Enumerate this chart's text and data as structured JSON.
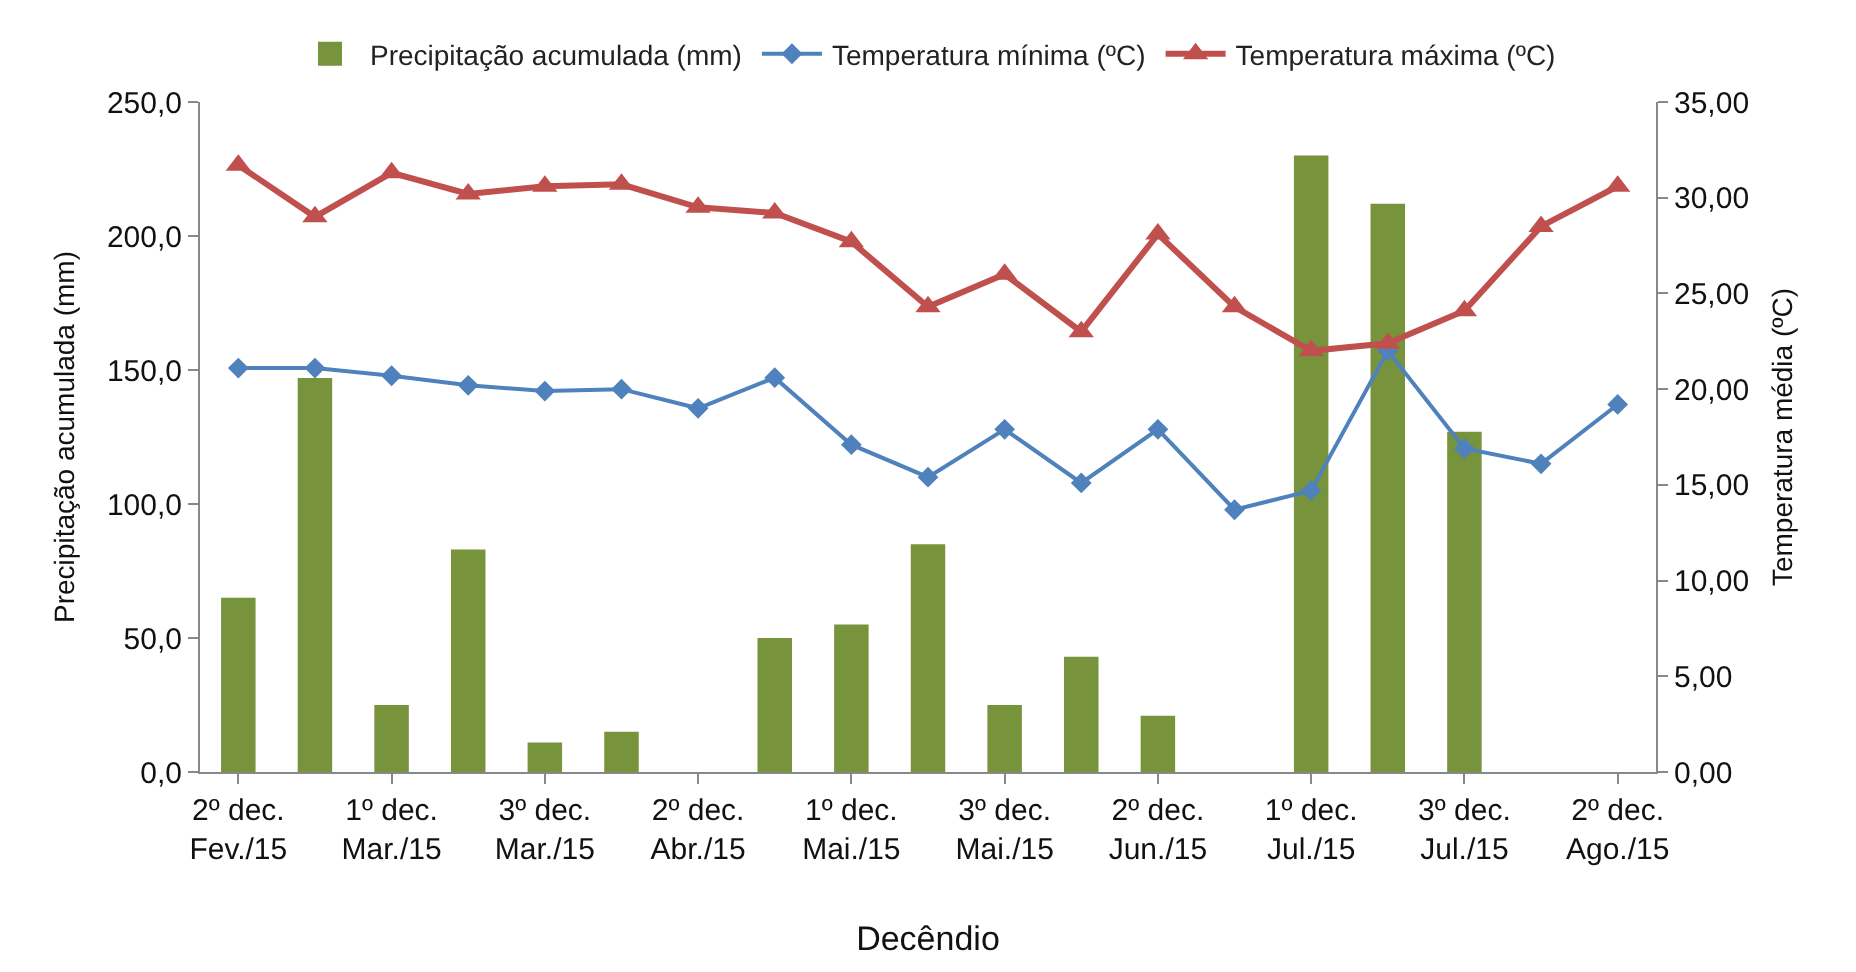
{
  "chart_data": {
    "type": "bar",
    "xlabel": "Decêndio",
    "ylabel": "Precipitação acumulada (mm)",
    "y2label": "Temperatura média (ºC)",
    "categories": [
      "2º dec. Fev./15",
      null,
      "1º dec. Mar./15",
      null,
      "3º dec. Mar./15",
      null,
      "2º dec. Abr./15",
      null,
      "1º dec. Mai./15",
      null,
      "3º dec. Mai./15",
      null,
      "2º dec. Jun./15",
      null,
      "1º dec. Jul./15",
      null,
      "3º dec. Jul./15",
      null,
      "2º dec. Ago./15"
    ],
    "series": [
      {
        "name": "Precipitação acumulada (mm)",
        "color": "#77933c",
        "values": [
          65,
          147,
          25,
          83,
          11,
          15,
          0,
          50,
          55,
          85,
          25,
          43,
          21,
          0,
          230,
          212,
          127,
          0,
          0
        ]
      },
      {
        "name": "Temperatura mínima (ºC)",
        "type": "line",
        "axis": "y2",
        "marker": "diamond",
        "color": "#4f81bd",
        "values": [
          21.1,
          21.1,
          20.7,
          20.2,
          19.9,
          20.0,
          19.0,
          20.6,
          17.1,
          15.4,
          17.9,
          15.1,
          17.9,
          13.7,
          14.7,
          22.0,
          16.9,
          16.1,
          19.2
        ]
      },
      {
        "name": "Temperatura máxima (ºC)",
        "type": "line",
        "axis": "y2",
        "marker": "triangle",
        "color": "#c0504d",
        "values": [
          31.7,
          29.0,
          31.3,
          30.2,
          30.6,
          30.7,
          29.5,
          29.2,
          27.7,
          24.3,
          26.0,
          23.0,
          28.1,
          24.3,
          22.0,
          22.4,
          24.1,
          28.5,
          30.6
        ]
      }
    ],
    "ylim": [
      0,
      250
    ],
    "yticks": [
      {
        "value": 0,
        "label": "0,0"
      },
      {
        "value": 50,
        "label": "50,0"
      },
      {
        "value": 100,
        "label": "100,0"
      },
      {
        "value": 150,
        "label": "150,0"
      },
      {
        "value": 200,
        "label": "200,0"
      },
      {
        "value": 250,
        "label": "250,0"
      }
    ],
    "y2lim": [
      0,
      35
    ],
    "y2ticks": [
      {
        "value": 0,
        "label": "0,00"
      },
      {
        "value": 5,
        "label": "5,00"
      },
      {
        "value": 10,
        "label": "10,00"
      },
      {
        "value": 15,
        "label": "15,00"
      },
      {
        "value": 20,
        "label": "20,00"
      },
      {
        "value": 25,
        "label": "25,00"
      },
      {
        "value": 30,
        "label": "30,00"
      },
      {
        "value": 35,
        "label": "35,00"
      }
    ],
    "grid": false,
    "legend": "top"
  }
}
